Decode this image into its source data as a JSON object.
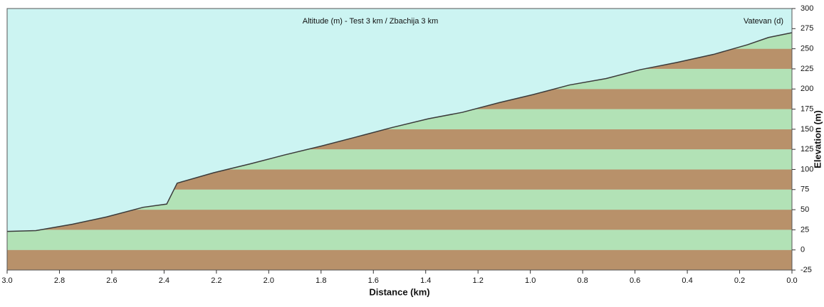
{
  "chart_data": {
    "type": "area",
    "title": "Altitude (m) - Test 3 km / Zbachija 3 km",
    "annotation": "Vatevan (d)",
    "x_label": "Distance (km)",
    "y_label": "Elevation (m)",
    "x": [
      3.0,
      2.89,
      2.75,
      2.62,
      2.48,
      2.39,
      2.35,
      2.21,
      2.07,
      1.94,
      1.8,
      1.67,
      1.53,
      1.39,
      1.26,
      1.12,
      0.99,
      0.85,
      0.71,
      0.58,
      0.44,
      0.3,
      0.17,
      0.09,
      0.0
    ],
    "values": [
      23,
      24,
      32,
      41,
      53,
      57,
      83,
      96,
      107,
      118,
      129,
      140,
      152,
      163,
      171,
      183,
      193,
      205,
      213,
      224,
      233,
      243,
      255,
      264,
      270
    ],
    "line_color": "#3a3a3a",
    "background_color": "#ccf4f2",
    "band_colors": [
      "#b8916a",
      "#b2e2b6"
    ],
    "xlim": [
      3.0,
      0.0
    ],
    "xticks": [
      {
        "value": 3.0,
        "label": "3.0"
      },
      {
        "value": 2.8,
        "label": "2.8"
      },
      {
        "value": 2.6,
        "label": "2.6"
      },
      {
        "value": 2.4,
        "label": "2.4"
      },
      {
        "value": 2.2,
        "label": "2.2"
      },
      {
        "value": 2.0,
        "label": "2.0"
      },
      {
        "value": 1.8,
        "label": "1.8"
      },
      {
        "value": 1.6,
        "label": "1.6"
      },
      {
        "value": 1.4,
        "label": "1.4"
      },
      {
        "value": 1.2,
        "label": "1.2"
      },
      {
        "value": 1.0,
        "label": "1.0"
      },
      {
        "value": 0.8,
        "label": "0.8"
      },
      {
        "value": 0.6,
        "label": "0.6"
      },
      {
        "value": 0.4,
        "label": "0.4"
      },
      {
        "value": 0.2,
        "label": "0.2"
      },
      {
        "value": 0.0,
        "label": "0.0"
      }
    ],
    "ylim": [
      -25,
      300
    ],
    "yticks": [
      -25,
      0,
      25,
      50,
      75,
      100,
      125,
      150,
      175,
      200,
      225,
      250,
      275,
      300
    ]
  }
}
